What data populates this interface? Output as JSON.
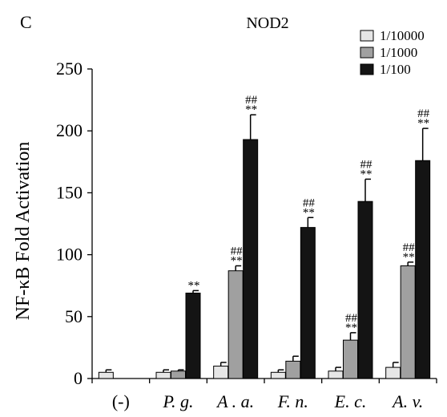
{
  "panel_label": "C",
  "chart_data": {
    "type": "bar",
    "title": "NOD2",
    "xlabel": "",
    "ylabel": "NF-κB  Fold Activation",
    "ylim": [
      0,
      250
    ],
    "yticks": [
      0,
      50,
      100,
      150,
      200,
      250
    ],
    "grid": false,
    "legend_position": "top-right",
    "categories": [
      "(-)",
      "P. g.",
      "A . a.",
      "F. n.",
      "E. c.",
      "A. v."
    ],
    "category_italic": [
      false,
      true,
      true,
      true,
      true,
      true
    ],
    "series": [
      {
        "name": "1/10000",
        "color": "#e6e6e6",
        "values": [
          5,
          5,
          10,
          5,
          6,
          9
        ],
        "errors": [
          2,
          2,
          3,
          2,
          3,
          4
        ],
        "annotations": [
          "",
          "",
          "",
          "",
          "",
          ""
        ]
      },
      {
        "name": "1/1000",
        "color": "#a0a0a0",
        "values": [
          null,
          6,
          87,
          14,
          31,
          91
        ],
        "errors": [
          null,
          1,
          4,
          4,
          6,
          3
        ],
        "annotations": [
          "",
          "",
          "##\n**",
          "",
          "##\n**",
          "##\n**"
        ]
      },
      {
        "name": "1/100",
        "color": "#141414",
        "values": [
          null,
          69,
          193,
          122,
          143,
          176
        ],
        "errors": [
          null,
          2,
          20,
          8,
          18,
          26
        ],
        "annotations": [
          "",
          "**",
          "##\n**",
          "##\n**",
          "##\n**",
          "##\n**"
        ]
      }
    ]
  }
}
